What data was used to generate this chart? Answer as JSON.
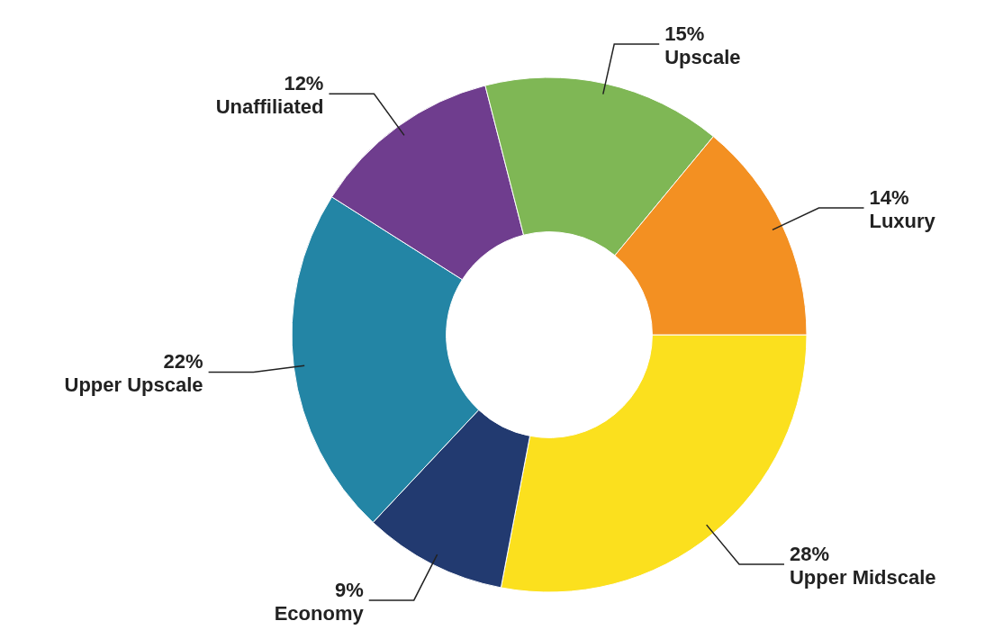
{
  "chart_data": {
    "type": "donut",
    "categories": [
      "Upper Midscale",
      "Economy",
      "Upper Upscale",
      "Unaffiliated",
      "Upscale",
      "Luxury"
    ],
    "values": [
      28,
      9,
      22,
      12,
      15,
      14
    ],
    "colors": [
      "#fbe01e",
      "#223a70",
      "#2385a5",
      "#6f3d8e",
      "#7fb755",
      "#f39022"
    ],
    "value_labels": [
      "28%",
      "9%",
      "22%",
      "12%",
      "15%",
      "14%"
    ]
  }
}
